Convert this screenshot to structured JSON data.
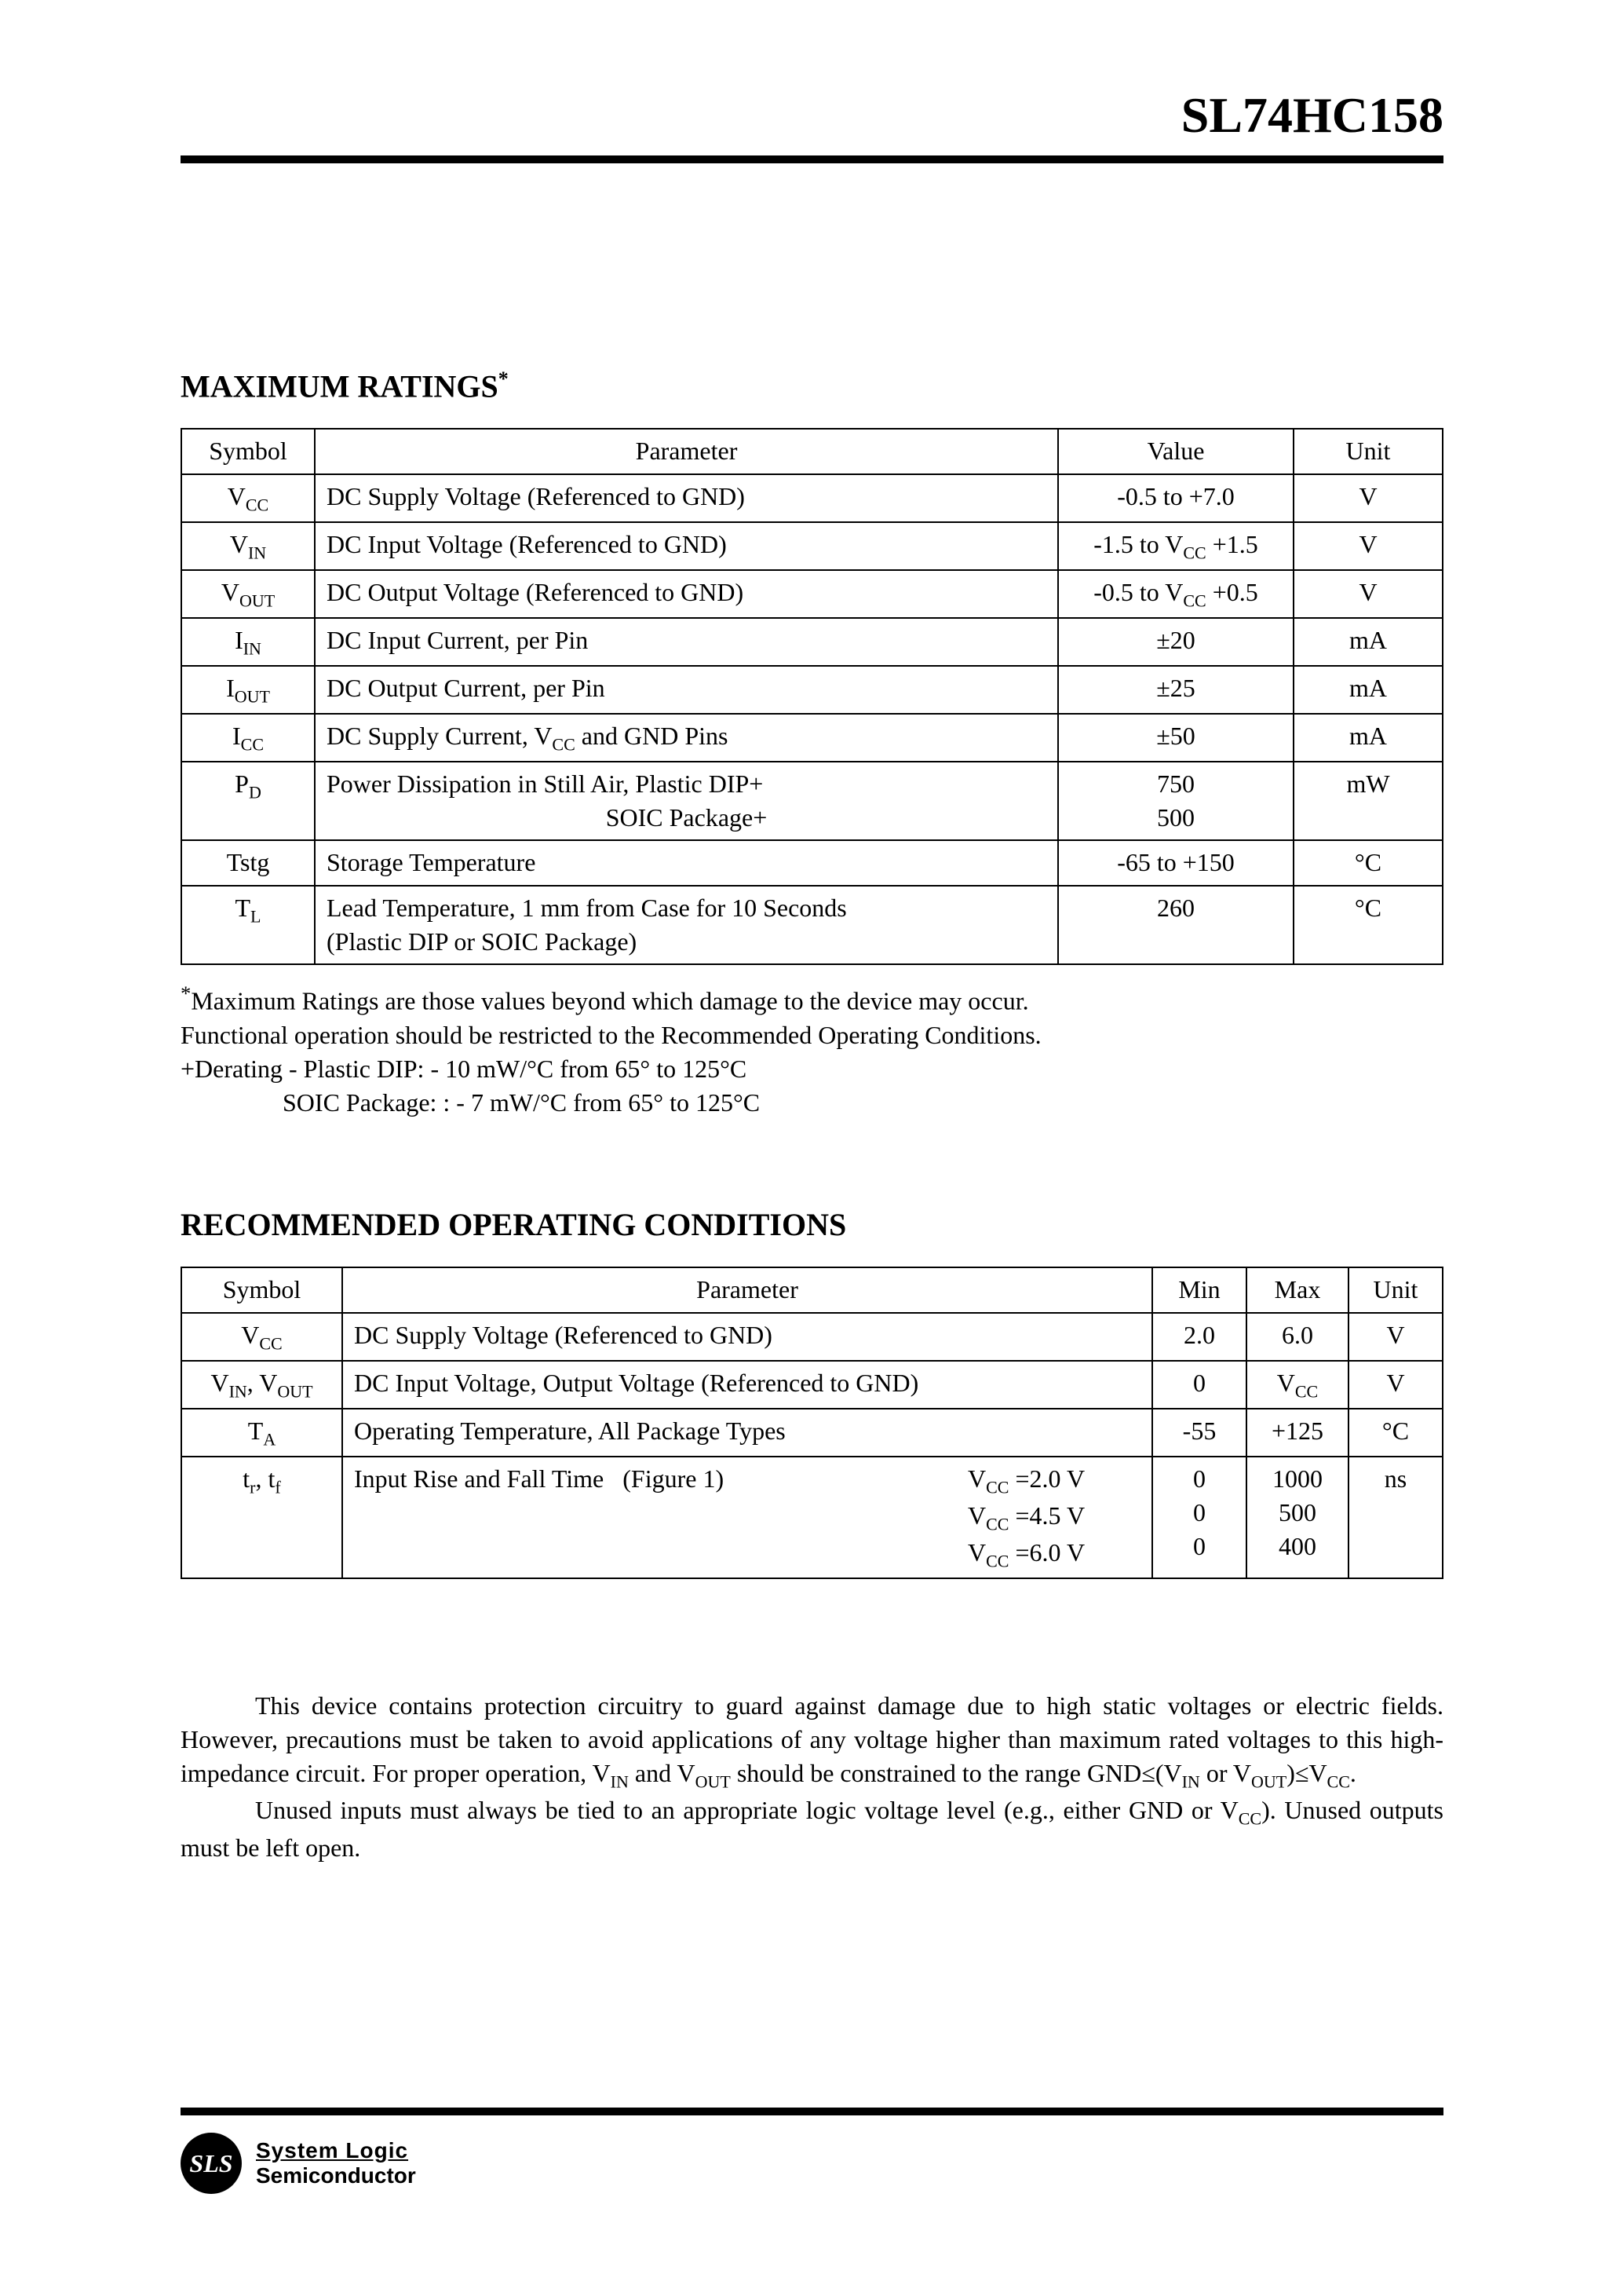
{
  "header": {
    "part_number": "SL74HC158"
  },
  "section1": {
    "title": "MAXIMUM RATINGS",
    "title_sup": "*",
    "columns": [
      "Symbol",
      "Parameter",
      "Value",
      "Unit"
    ],
    "rows": [
      {
        "symbol_html": "V<span class='sub'>CC</span>",
        "param_html": "DC Supply Voltage (Referenced to GND)",
        "value_html": "-0.5 to +7.0",
        "unit": "V"
      },
      {
        "symbol_html": "V<span class='sub'>IN</span>",
        "param_html": "DC Input Voltage (Referenced to GND)",
        "value_html": "-1.5 to V<span class='sub'>CC</span> +1.5",
        "unit": "V"
      },
      {
        "symbol_html": "V<span class='sub'>OUT</span>",
        "param_html": "DC Output Voltage (Referenced to GND)",
        "value_html": "-0.5 to V<span class='sub'>CC</span> +0.5",
        "unit": "V"
      },
      {
        "symbol_html": "I<span class='sub'>IN</span>",
        "param_html": "DC Input Current, per Pin",
        "value_html": "±20",
        "unit": "mA"
      },
      {
        "symbol_html": "I<span class='sub'>OUT</span>",
        "param_html": "DC Output Current, per Pin",
        "value_html": "±25",
        "unit": "mA"
      },
      {
        "symbol_html": "I<span class='sub'>CC</span>",
        "param_html": "DC Supply Current, V<span class='sub'>CC</span> and GND Pins",
        "value_html": "±50",
        "unit": "mA"
      },
      {
        "symbol_html": "P<span class='sub'>D</span>",
        "param_html": "Power Dissipation in Still Air, Plastic  DIP+<br><span style='display:inline-block;width:100%;text-align:center;'>SOIC Package+</span>",
        "value_html": "750<br>500",
        "unit": "mW"
      },
      {
        "symbol_html": "Tstg",
        "param_html": "Storage Temperature",
        "value_html": "-65 to +150",
        "unit": "°C"
      },
      {
        "symbol_html": "T<span class='sub'>L</span>",
        "param_html": "Lead Temperature, 1 mm from Case for 10 Seconds<br>(Plastic DIP or SOIC Package)",
        "value_html": "260",
        "unit": "°C"
      }
    ],
    "notes_html": "<sup>*</sup>Maximum Ratings are those values beyond which damage to the device may occur.<br>Functional operation should be restricted to the Recommended Operating Conditions.<br>+Derating - Plastic DIP: - 10 mW/°C from 65° to 125°C<br><span class='indent'>SOIC Package: : - 7 mW/°C from 65° to 125°C</span>"
  },
  "section2": {
    "title": "RECOMMENDED OPERATING CONDITIONS",
    "columns": [
      "Symbol",
      "Parameter",
      "Min",
      "Max",
      "Unit"
    ],
    "rows": [
      {
        "symbol_html": "V<span class='sub'>CC</span>",
        "param_html": "DC Supply Voltage (Referenced to GND)",
        "min": "2.0",
        "max": "6.0",
        "unit": "V"
      },
      {
        "symbol_html": "V<span class='sub'>IN</span>, V<span class='sub'>OUT</span>",
        "param_html": "DC Input Voltage, Output Voltage (Referenced to GND)",
        "min": "0",
        "max": "V<span class='sub'>CC</span>",
        "unit": "V"
      },
      {
        "symbol_html": "T<span class='sub'>A</span>",
        "param_html": "Operating Temperature, All Package Types",
        "min": "-55",
        "max": "+125",
        "unit": "°C"
      },
      {
        "symbol_html": "t<span class='sub'>r</span>, t<span class='sub'>f</span>",
        "param_html": "<div class='param-flex'><span>Input Rise and Fall Time&nbsp;&nbsp;&nbsp;(Figure 1)</span><span class='right'>V<span class='sub'>CC</span> =2.0 V<br>V<span class='sub'>CC</span> =4.5 V<br>V<span class='sub'>CC</span> =6.0 V</span></div>",
        "min": "0<br>0<br>0",
        "max": "1000<br>500<br>400",
        "unit": "ns"
      }
    ]
  },
  "body": {
    "p1_html": "This device contains protection circuitry to guard against damage due to high static  voltages or electric fields. However, precautions must be taken to avoid applications of any voltage higher than maximum rated voltages to this high-impedance circuit. For proper operation, V<span class='sub'>IN</span> and V<span class='sub'>OUT</span> should be constrained to the range GND≤(V<span class='sub'>IN</span> or V<span class='sub'>OUT</span>)≤V<span class='sub'>CC</span>.",
    "p2_html": "Unused inputs must always be tied to an appropriate logic voltage level (e.g., either GND or V<span class='sub'>CC</span>). Unused outputs must be left open."
  },
  "footer": {
    "badge": "SLS",
    "line1": "System Logic",
    "line2": "Semiconductor"
  },
  "style": {
    "colwidths_t1": {
      "symbol": "170px",
      "value": "300px",
      "unit": "190px"
    },
    "colwidths_t2": {
      "symbol": "205px",
      "min": "120px",
      "max": "130px",
      "unit": "120px"
    }
  }
}
